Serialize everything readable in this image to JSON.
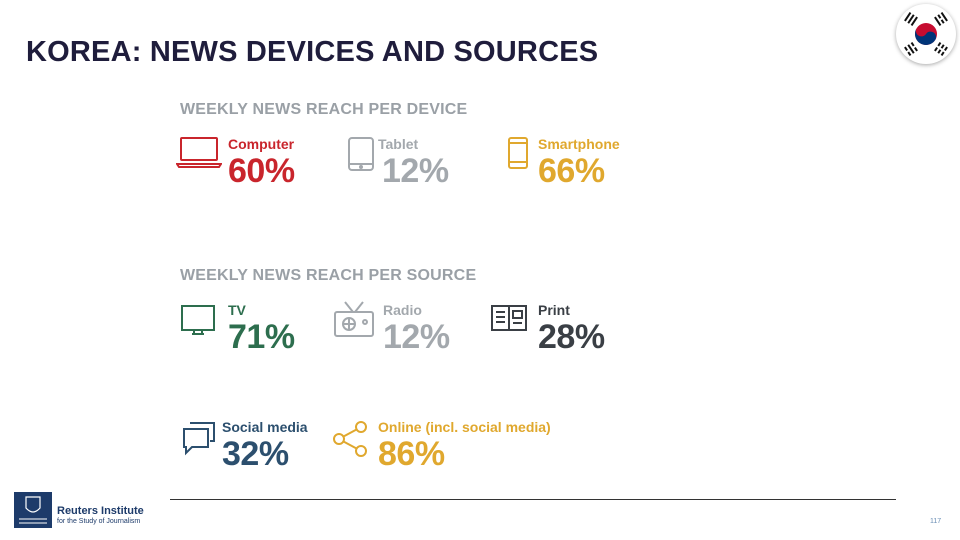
{
  "slide": {
    "title": "KOREA: NEWS DEVICES AND SOURCES",
    "page_number": "117"
  },
  "devices": {
    "heading": "WEEKLY NEWS REACH PER DEVICE",
    "items": [
      {
        "label": "Computer",
        "value": "60%",
        "icon": "laptop-icon",
        "color": "#c9252c"
      },
      {
        "label": "Tablet",
        "value": "12%",
        "icon": "tablet-icon",
        "color": "#a3a8ad"
      },
      {
        "label": "Smartphone",
        "value": "66%",
        "icon": "smartphone-icon",
        "color": "#e0a82e"
      }
    ]
  },
  "sources": {
    "heading": "WEEKLY NEWS REACH PER SOURCE",
    "items": [
      {
        "label": "TV",
        "value": "71%",
        "icon": "tv-icon",
        "color": "#2d6e4e"
      },
      {
        "label": "Radio",
        "value": "12%",
        "icon": "radio-icon",
        "color": "#a3a8ad"
      },
      {
        "label": "Print",
        "value": "28%",
        "icon": "newspaper-icon",
        "color": "#3a3f45"
      },
      {
        "label": "Social media",
        "value": "32%",
        "icon": "chat-bubbles-icon",
        "color": "#2c4f6e"
      },
      {
        "label": "Online (incl. social media)",
        "value": "86%",
        "icon": "share-icon",
        "color": "#e0a82e"
      }
    ]
  },
  "footer": {
    "org_name": "Reuters Institute",
    "org_subtitle": "for the Study of Journalism",
    "logo_icon": "oxford-crest-icon"
  }
}
